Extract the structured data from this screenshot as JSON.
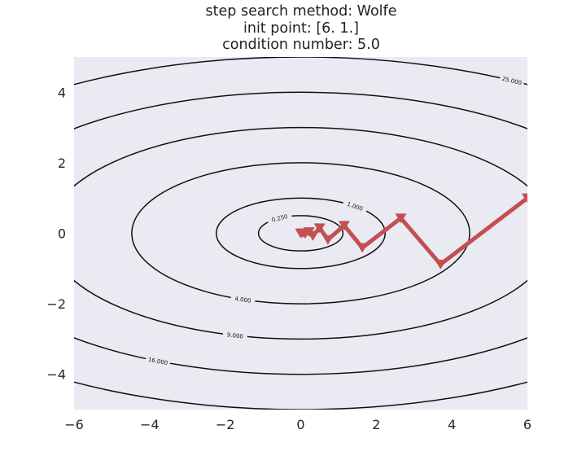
{
  "chart_data": {
    "type": "line",
    "title_lines": [
      "step search method: Wolfe",
      "init point: [6. 1.]",
      "condition number: 5.0"
    ],
    "xlim": [
      -6,
      6
    ],
    "ylim": [
      -5,
      5
    ],
    "x_ticks": [
      -6,
      -4,
      -2,
      0,
      2,
      4,
      6
    ],
    "y_ticks": [
      -4,
      -2,
      0,
      2,
      4
    ],
    "x_tick_labels": [
      "−6",
      "−4",
      "−2",
      "0",
      "2",
      "4",
      "6"
    ],
    "y_tick_labels": [
      "−4",
      "−2",
      "0",
      "2",
      "4"
    ],
    "grid": false,
    "background": "#eaeaf2",
    "contours": {
      "function": "f(x,y) = x^2/5 + y^2",
      "levels": [
        0.25,
        1,
        4,
        9,
        16,
        25
      ],
      "level_labels": [
        "0.250",
        "1.000",
        "4.000",
        "9.000",
        "16.000",
        "25.000"
      ],
      "color": "#111111"
    },
    "path": {
      "color": "#c44e52",
      "marker": "triangle-down",
      "points": [
        [
          6.0,
          1.0
        ],
        [
          3.7,
          -0.88
        ],
        [
          2.65,
          0.43
        ],
        [
          1.63,
          -0.41
        ],
        [
          1.15,
          0.22
        ],
        [
          0.72,
          -0.18
        ],
        [
          0.5,
          0.15
        ],
        [
          0.32,
          -0.07
        ],
        [
          0.22,
          0.04
        ],
        [
          0.12,
          -0.01
        ],
        [
          0.05,
          0.01
        ],
        [
          0.0,
          0.0
        ]
      ]
    }
  }
}
